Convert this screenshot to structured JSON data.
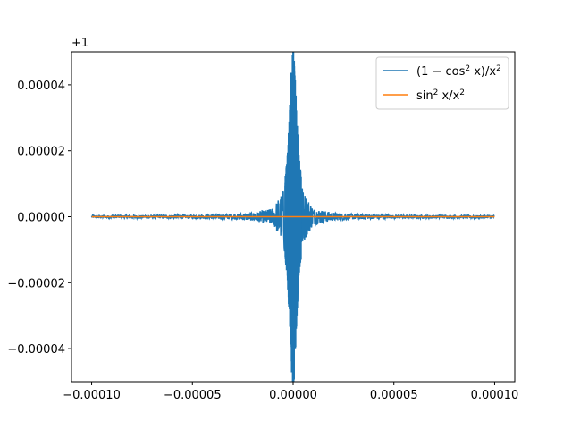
{
  "chart_data": {
    "type": "line",
    "title": "",
    "xlabel": "",
    "ylabel": "",
    "xlim": [
      -0.00011,
      0.00011
    ],
    "ylim": [
      -5e-05,
      5e-05
    ],
    "y_offset_text": "+1",
    "y_offset_value": 1,
    "x_ticks": [
      -0.0001,
      -5e-05,
      0.0,
      5e-05,
      0.0001
    ],
    "x_tick_labels": [
      "−0.00010",
      "−0.00005",
      "0.00000",
      "0.00005",
      "0.00010"
    ],
    "y_ticks": [
      -4e-05,
      -2e-05,
      0.0,
      2e-05,
      4e-05
    ],
    "y_tick_labels": [
      "−0.00004",
      "−0.00002",
      "0.00000",
      "0.00002",
      "0.00004"
    ],
    "grid": false,
    "legend_position": "upper right",
    "series": [
      {
        "name": "(1 − cos² x)/x²",
        "name_parts": {
          "open": "(1 − cos",
          "sup1": "2",
          "mid": " x)/x",
          "sup2": "2"
        },
        "color": "#1f77b4",
        "x_range": [
          -0.0001,
          0.0001
        ],
        "description": "noisy oscillation around 1; amplitude grows sharply as x approaches 0",
        "envelope": [
          {
            "x": 0.0,
            "amp": 6e-05
          },
          {
            "x": 5e-07,
            "amp": 5e-05
          },
          {
            "x": 1e-06,
            "amp": 4.5e-05
          },
          {
            "x": 2e-06,
            "amp": 3e-05
          },
          {
            "x": 3e-06,
            "amp": 1.8e-05
          },
          {
            "x": 5e-06,
            "amp": 8e-06
          },
          {
            "x": 1e-05,
            "amp": 2.5e-06
          },
          {
            "x": 2e-05,
            "amp": 1.2e-06
          },
          {
            "x": 3e-05,
            "amp": 8e-07
          },
          {
            "x": 5e-05,
            "amp": 5e-07
          },
          {
            "x": 0.0001,
            "amp": 4e-07
          }
        ]
      },
      {
        "name": "sin² x/x²",
        "name_parts": {
          "open": "sin",
          "sup1": "2",
          "mid": " x/x",
          "sup2": "2"
        },
        "color": "#ff7f0e",
        "x_range": [
          -0.0001,
          0.0001
        ],
        "y_constant": 0.0
      }
    ]
  }
}
